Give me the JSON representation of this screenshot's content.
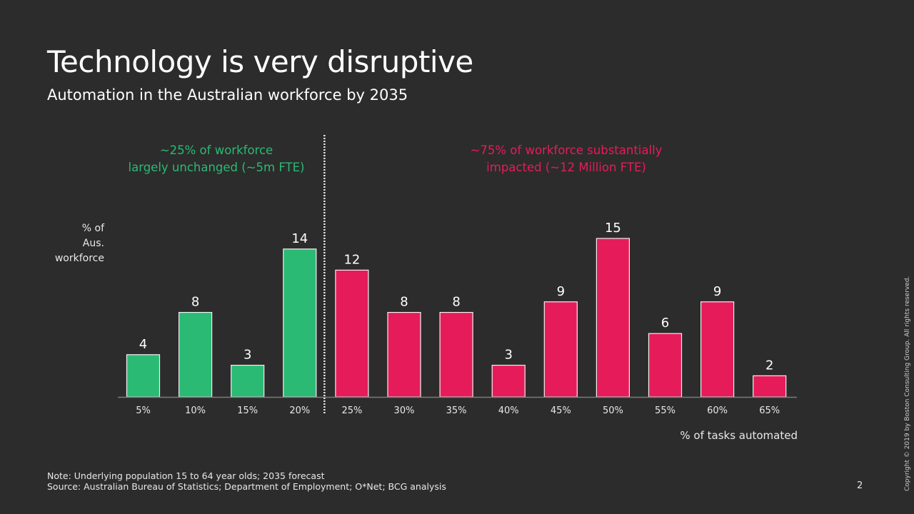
{
  "slide": {
    "title": "Technology is very disruptive",
    "subtitle": "Automation in the Australian workforce by 2035",
    "page_number": "2",
    "copyright": "Copyright © 2019 by Boston Consulting Group. All rights reserved.",
    "note_line1": "Note: Underlying population 15 to 64 year olds; 2035 forecast",
    "note_line2": "Source: Australian Bureau of Statistics; Department of Employment; O*Net; BCG analysis"
  },
  "callouts": {
    "left_line1": "~25% of workforce",
    "left_line2": "largely unchanged (~5m FTE)",
    "right_line1": "~75% of workforce substantially",
    "right_line2": "impacted (~12 Million FTE)"
  },
  "colors": {
    "background": "#2c2c2c",
    "green": "#2aba74",
    "red": "#e61c5a"
  },
  "chart_data": {
    "type": "bar",
    "title": "",
    "xlabel": "% of tasks automated",
    "ylabel_lines": [
      "% of",
      "Aus.",
      "workforce"
    ],
    "categories": [
      "5%",
      "10%",
      "15%",
      "20%",
      "25%",
      "30%",
      "35%",
      "40%",
      "45%",
      "50%",
      "55%",
      "60%",
      "65%"
    ],
    "values": [
      4,
      8,
      3,
      14,
      12,
      8,
      8,
      3,
      9,
      15,
      6,
      9,
      2
    ],
    "groups": [
      "unchanged",
      "unchanged",
      "unchanged",
      "unchanged",
      "impacted",
      "impacted",
      "impacted",
      "impacted",
      "impacted",
      "impacted",
      "impacted",
      "impacted",
      "impacted"
    ],
    "group_colors": {
      "unchanged": "#2aba74",
      "impacted": "#e61c5a"
    },
    "divider_after_category": "20%",
    "ylim": [
      0,
      15
    ],
    "grid": false,
    "legend": "none",
    "data_labels": true
  }
}
